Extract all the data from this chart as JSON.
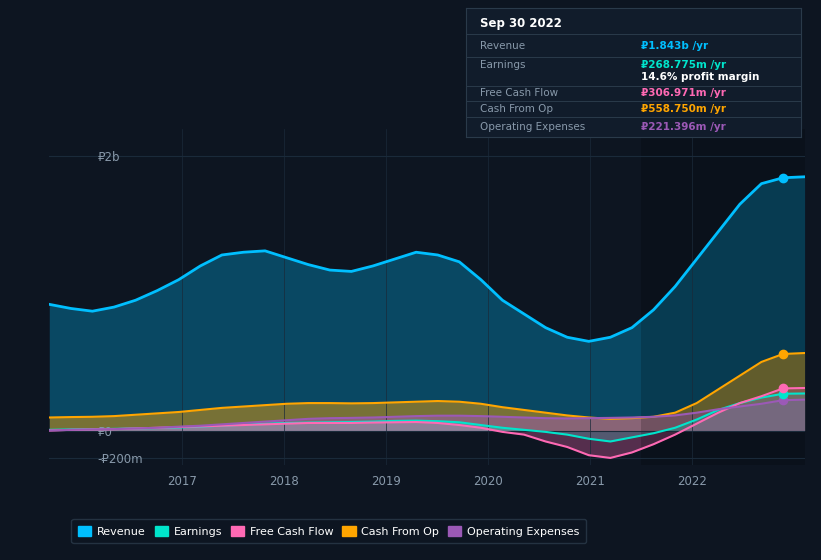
{
  "bg_color": "#0d1521",
  "panel_color": "#0d1521",
  "title": "Sep 30 2022",
  "ylim": [
    -250,
    2200
  ],
  "yticks": [
    -200,
    0,
    2000
  ],
  "ytick_labels": [
    "-₽200m",
    "₽0",
    "₽2b"
  ],
  "xlim_start": 2015.7,
  "xlim_end": 2023.1,
  "xtick_years": [
    2017,
    2018,
    2019,
    2020,
    2021,
    2022
  ],
  "grid_color": "#1a2a3a",
  "text_color": "#8899aa",
  "colors": {
    "revenue": "#00bfff",
    "earnings": "#00e5cc",
    "free_cash_flow": "#ff69b4",
    "cash_from_op": "#ffa500",
    "operating_expenses": "#9b59b6"
  },
  "revenue": [
    920,
    890,
    870,
    900,
    950,
    1020,
    1100,
    1200,
    1280,
    1300,
    1310,
    1260,
    1210,
    1170,
    1160,
    1200,
    1250,
    1300,
    1280,
    1230,
    1100,
    950,
    850,
    750,
    680,
    650,
    680,
    750,
    880,
    1050,
    1250,
    1450,
    1650,
    1800,
    1843,
    1850
  ],
  "earnings": [
    5,
    8,
    10,
    12,
    15,
    18,
    22,
    28,
    35,
    42,
    50,
    55,
    58,
    60,
    62,
    65,
    70,
    72,
    68,
    60,
    40,
    20,
    5,
    -10,
    -30,
    -60,
    -80,
    -50,
    -20,
    20,
    80,
    150,
    200,
    240,
    268,
    270
  ],
  "free_cash_flow": [
    0,
    5,
    8,
    10,
    15,
    20,
    25,
    30,
    35,
    40,
    45,
    50,
    55,
    55,
    55,
    58,
    60,
    62,
    55,
    40,
    20,
    -10,
    -30,
    -80,
    -120,
    -180,
    -200,
    -160,
    -100,
    -30,
    50,
    130,
    200,
    250,
    307,
    310
  ],
  "cash_from_op": [
    95,
    98,
    100,
    105,
    115,
    125,
    135,
    150,
    165,
    175,
    185,
    195,
    200,
    200,
    198,
    200,
    205,
    210,
    215,
    210,
    195,
    170,
    150,
    130,
    110,
    95,
    85,
    90,
    100,
    130,
    200,
    300,
    400,
    500,
    558,
    565
  ],
  "operating_expenses": [
    0,
    5,
    8,
    10,
    15,
    20,
    28,
    35,
    45,
    55,
    65,
    75,
    85,
    90,
    92,
    95,
    100,
    105,
    108,
    108,
    105,
    100,
    95,
    90,
    88,
    90,
    92,
    95,
    100,
    110,
    130,
    155,
    175,
    195,
    221,
    225
  ],
  "n_points": 36,
  "legend_items": [
    {
      "label": "Revenue",
      "color": "#00bfff"
    },
    {
      "label": "Earnings",
      "color": "#00e5cc"
    },
    {
      "label": "Free Cash Flow",
      "color": "#ff69b4"
    },
    {
      "label": "Cash From Op",
      "color": "#ffa500"
    },
    {
      "label": "Operating Expenses",
      "color": "#9b59b6"
    }
  ],
  "box_rows": [
    {
      "label": "Revenue",
      "value": "₽1.843b /yr",
      "value_color": "#00bfff",
      "sub": null,
      "sub_color": null
    },
    {
      "label": "Earnings",
      "value": "₽268.775m /yr",
      "value_color": "#00e5cc",
      "sub": "14.6% profit margin",
      "sub_color": "#ffffff"
    },
    {
      "label": "Free Cash Flow",
      "value": "₽306.971m /yr",
      "value_color": "#ff69b4",
      "sub": null,
      "sub_color": null
    },
    {
      "label": "Cash From Op",
      "value": "₽558.750m /yr",
      "value_color": "#ffa500",
      "sub": null,
      "sub_color": null
    },
    {
      "label": "Operating Expenses",
      "value": "₽221.396m /yr",
      "value_color": "#9b59b6",
      "sub": null,
      "sub_color": null
    }
  ]
}
